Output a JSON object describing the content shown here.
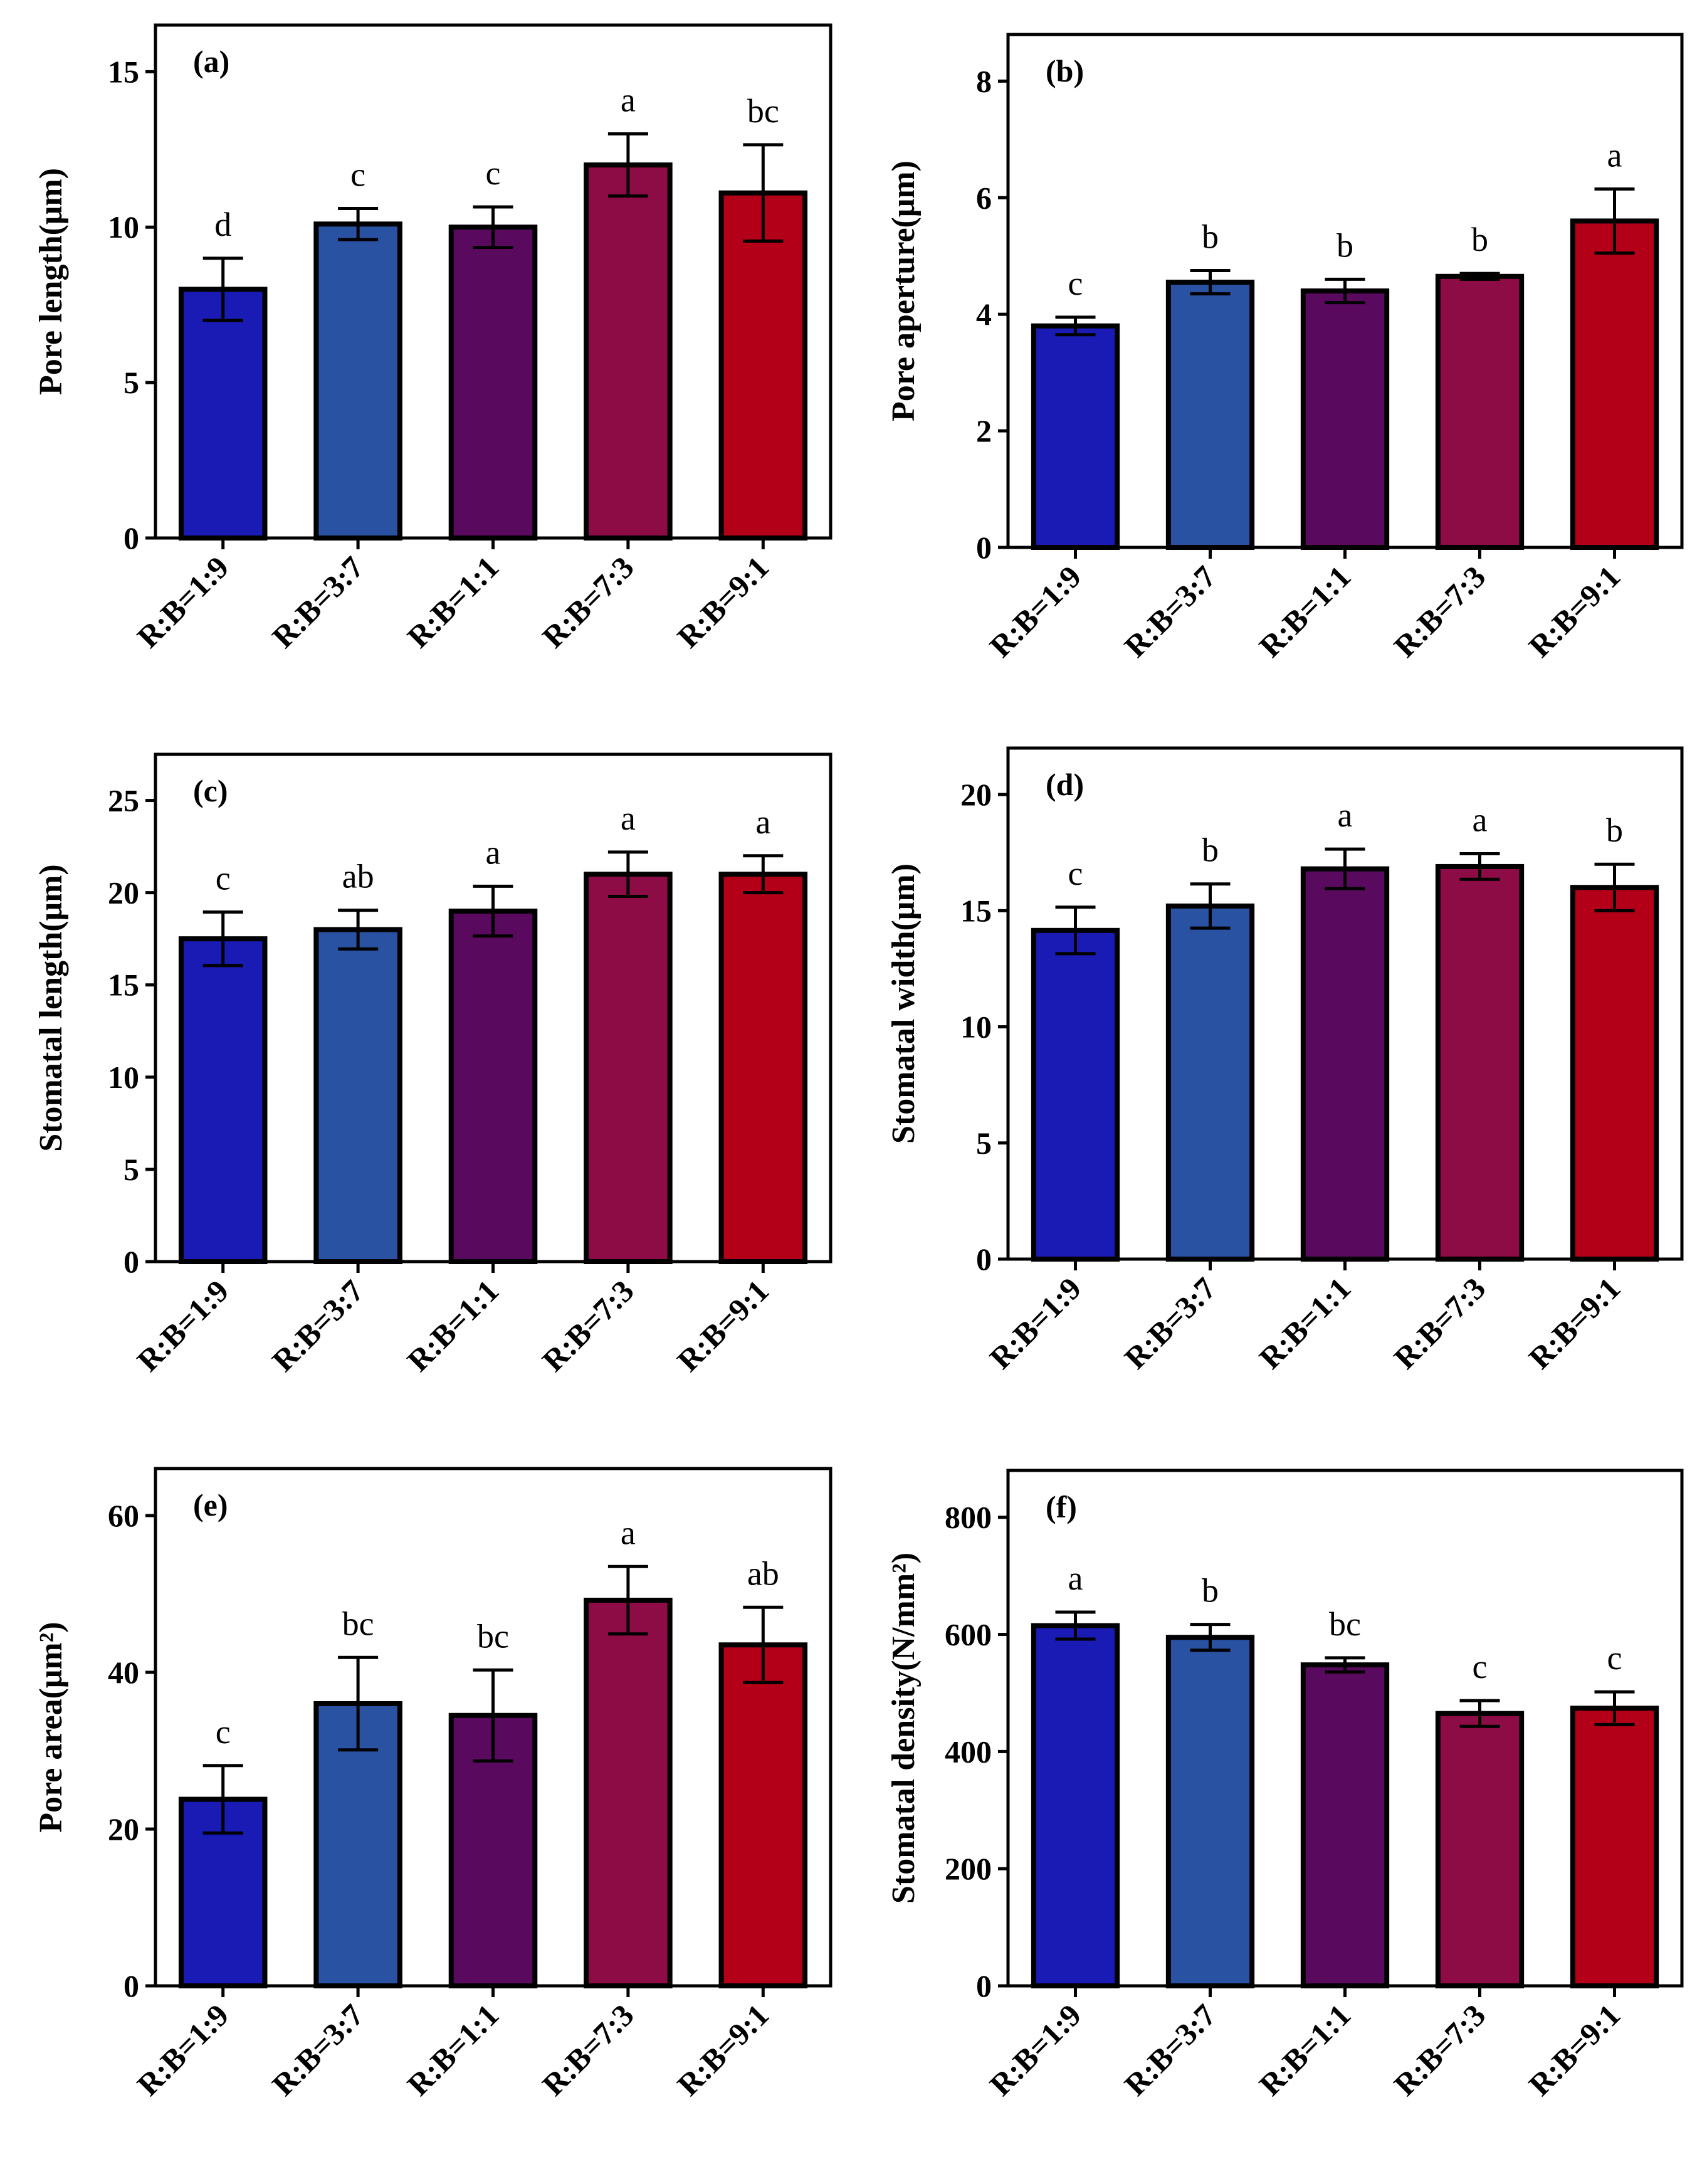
{
  "figure": {
    "title": ""
  },
  "colors": {
    "R:B=1:9": "#1a1ab4",
    "R:B=3:7": "#2952a3",
    "R:B=1:1": "#5a0a5e",
    "R:B=7:3": "#8e0c46",
    "R:B=9:1": "#b30018",
    "axis": "#000000"
  },
  "chart_data": [
    {
      "id": "a",
      "type": "bar",
      "panel_label": "(a)",
      "title": "",
      "xlabel": "",
      "ylabel": "Pore length(μm)",
      "ylim": [
        0,
        16.5
      ],
      "yticks": [
        0,
        5,
        10,
        15
      ],
      "categories": [
        "R:B=1:9",
        "R:B=3:7",
        "R:B=1:1",
        "R:B=7:3",
        "R:B=9:1"
      ],
      "values": [
        8.0,
        10.1,
        10.0,
        12.0,
        11.1
      ],
      "errors": [
        1.0,
        0.5,
        0.65,
        1.0,
        1.55
      ],
      "letters": [
        "d",
        "c",
        "c",
        "a",
        "bc"
      ]
    },
    {
      "id": "b",
      "type": "bar",
      "panel_label": "(b)",
      "title": "",
      "xlabel": "",
      "ylabel": "Pore aperture(μm)",
      "ylim": [
        0,
        8.8
      ],
      "yticks": [
        0,
        2,
        4,
        6,
        8
      ],
      "categories": [
        "R:B=1:9",
        "R:B=3:7",
        "R:B=1:1",
        "R:B=7:3",
        "R:B=9:1"
      ],
      "values": [
        3.8,
        4.55,
        4.4,
        4.65,
        5.6
      ],
      "errors": [
        0.15,
        0.2,
        0.2,
        0.05,
        0.55
      ],
      "letters": [
        "c",
        "b",
        "b",
        "b",
        "a"
      ]
    },
    {
      "id": "c",
      "type": "bar",
      "panel_label": "(c)",
      "title": "",
      "xlabel": "",
      "ylabel": "Stomatal length(μm)",
      "ylim": [
        0,
        27.5
      ],
      "yticks": [
        0,
        5,
        10,
        15,
        20,
        25
      ],
      "categories": [
        "R:B=1:9",
        "R:B=3:7",
        "R:B=1:1",
        "R:B=7:3",
        "R:B=9:1"
      ],
      "values": [
        17.5,
        18.0,
        19.0,
        21.0,
        21.0
      ],
      "errors": [
        1.45,
        1.05,
        1.35,
        1.2,
        1.0
      ],
      "letters": [
        "c",
        "ab",
        "a",
        "a",
        "a"
      ]
    },
    {
      "id": "d",
      "type": "bar",
      "panel_label": "(d)",
      "title": "",
      "xlabel": "",
      "ylabel": "Stomatal width(μm)",
      "ylim": [
        0,
        22
      ],
      "yticks": [
        0,
        5,
        10,
        15,
        20
      ],
      "categories": [
        "R:B=1:9",
        "R:B=3:7",
        "R:B=1:1",
        "R:B=7:3",
        "R:B=9:1"
      ],
      "values": [
        14.15,
        15.2,
        16.8,
        16.9,
        16.0
      ],
      "errors": [
        1.0,
        0.95,
        0.85,
        0.55,
        1.0
      ],
      "letters": [
        "c",
        "b",
        "a",
        "a",
        "b"
      ]
    },
    {
      "id": "e",
      "type": "bar",
      "panel_label": "(e)",
      "title": "",
      "xlabel": "",
      "ylabel": "Pore area(μm²)",
      "ylim": [
        0,
        66
      ],
      "yticks": [
        0,
        20,
        40,
        60
      ],
      "categories": [
        "R:B=1:9",
        "R:B=3:7",
        "R:B=1:1",
        "R:B=7:3",
        "R:B=9:1"
      ],
      "values": [
        23.8,
        36.0,
        34.5,
        49.2,
        43.5
      ],
      "errors": [
        4.3,
        5.9,
        5.8,
        4.3,
        4.8
      ],
      "letters": [
        "c",
        "bc",
        "bc",
        "a",
        "ab"
      ]
    },
    {
      "id": "f",
      "type": "bar",
      "panel_label": "(f)",
      "title": "",
      "xlabel": "",
      "ylabel": "Stomatal density(N/mm²)",
      "ylim": [
        0,
        880
      ],
      "yticks": [
        0,
        200,
        400,
        600,
        800
      ],
      "categories": [
        "R:B=1:9",
        "R:B=3:7",
        "R:B=1:1",
        "R:B=7:3",
        "R:B=9:1"
      ],
      "values": [
        615,
        595,
        548,
        465,
        474
      ],
      "errors": [
        23,
        22,
        12,
        22,
        28
      ],
      "letters": [
        "a",
        "b",
        "bc",
        "c",
        "c"
      ]
    }
  ]
}
